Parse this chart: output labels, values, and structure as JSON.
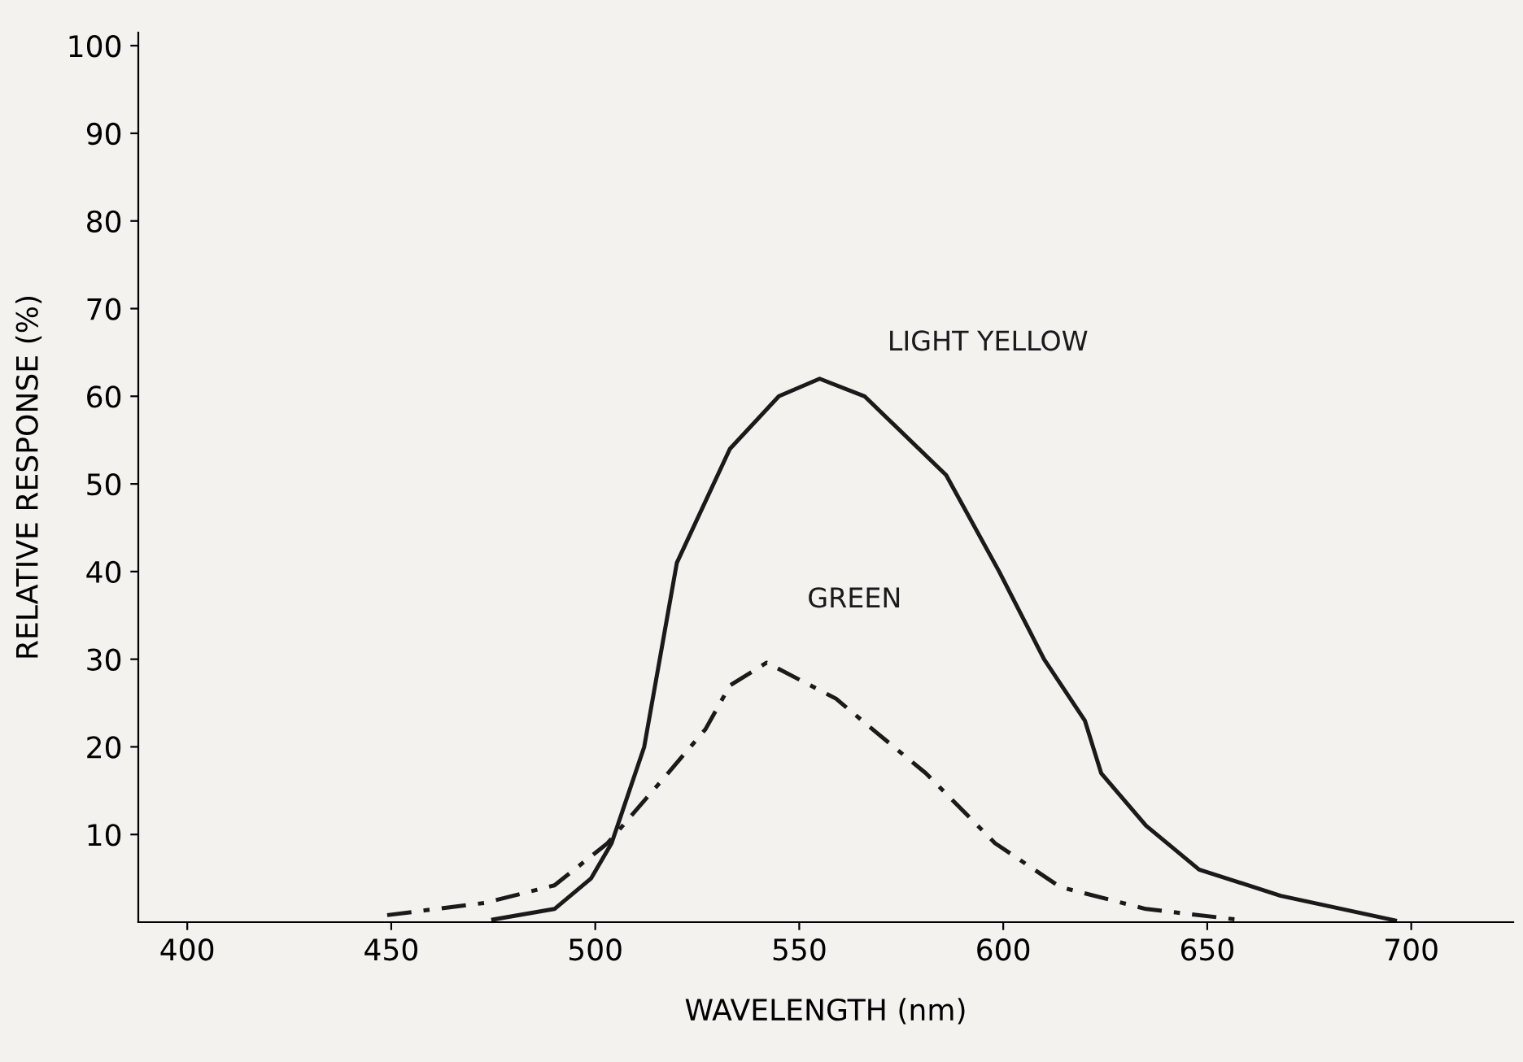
{
  "chart_data": {
    "type": "line",
    "xlabel": "WAVELENGTH (nm)",
    "ylabel": "RELATIVE RESPONSE (%)",
    "xlim": [
      388,
      725
    ],
    "ylim": [
      0,
      101.5
    ],
    "xticks": [
      400,
      450,
      500,
      550,
      600,
      650,
      700
    ],
    "yticks": [
      10,
      20,
      30,
      40,
      50,
      60,
      70,
      80,
      90,
      100
    ],
    "grid": false,
    "legend": false,
    "series": [
      {
        "name": "LIGHT YELLOW",
        "color": "#1a1a1a",
        "line_style": "solid",
        "x": [
          475,
          490,
          499,
          504,
          512,
          520,
          533,
          545,
          555,
          566,
          586,
          599,
          610,
          620,
          624,
          635,
          648,
          668,
          696
        ],
        "values": [
          0.3,
          1.5,
          5,
          9,
          20,
          41,
          54,
          60,
          62,
          60,
          51,
          40,
          30,
          23,
          17,
          11,
          6,
          3,
          0.2
        ]
      },
      {
        "name": "GREEN",
        "color": "#1a1a1a",
        "line_style": "dashdot",
        "x": [
          449,
          473,
          490,
          503,
          516,
          527,
          533,
          542,
          559,
          569,
          581,
          598,
          614,
          635,
          659
        ],
        "values": [
          0.8,
          2.2,
          4.2,
          9,
          16,
          22,
          27,
          29.6,
          25.5,
          21.6,
          17,
          9,
          4,
          1.5,
          0.2
        ]
      }
    ]
  }
}
